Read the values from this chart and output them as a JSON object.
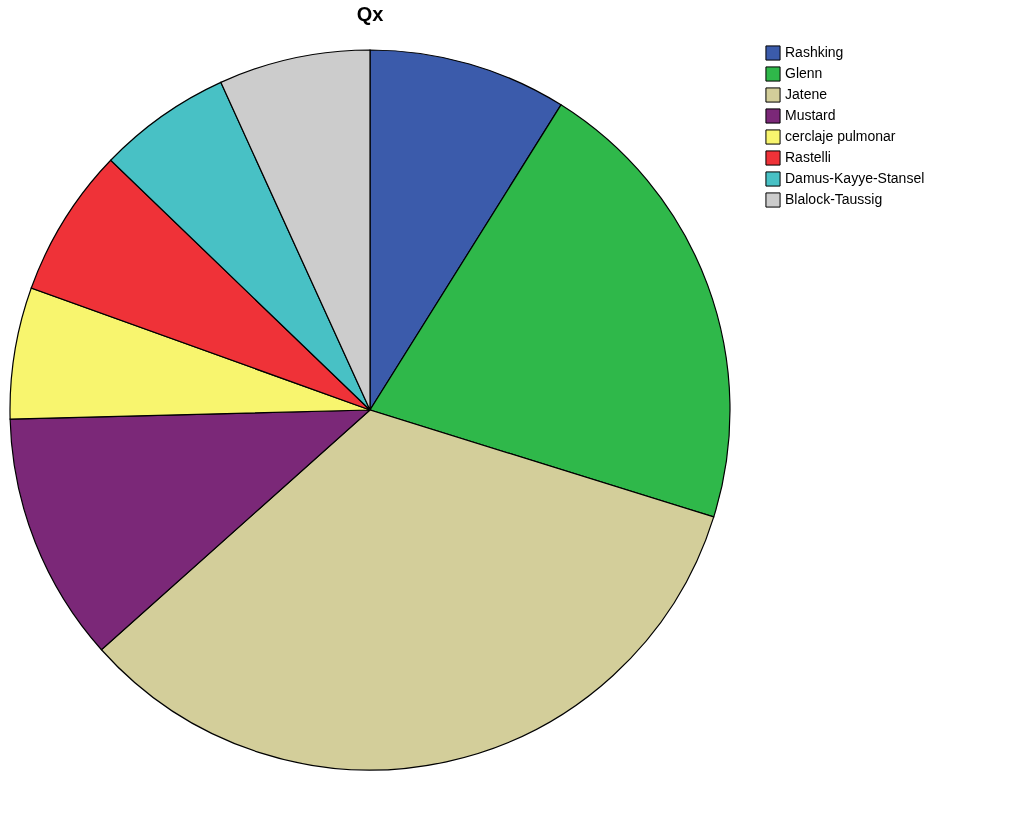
{
  "chart_data": {
    "type": "pie",
    "title": "Qx",
    "categories": [
      "Rashking",
      "Glenn",
      "Jatene",
      "Mustard",
      "cerclaje pulmonar",
      "Rastelli",
      "Damus-Kayye-Stansel",
      "Blalock-Taussig"
    ],
    "values": [
      8.9,
      20.9,
      33.6,
      11.2,
      5.9,
      6.7,
      6.0,
      6.8
    ],
    "colors": [
      "#3b5bab",
      "#2fb84a",
      "#d3ce9a",
      "#7b2878",
      "#f8f56e",
      "#ef3238",
      "#48c1c5",
      "#cccccc"
    ],
    "legend": "top right"
  }
}
